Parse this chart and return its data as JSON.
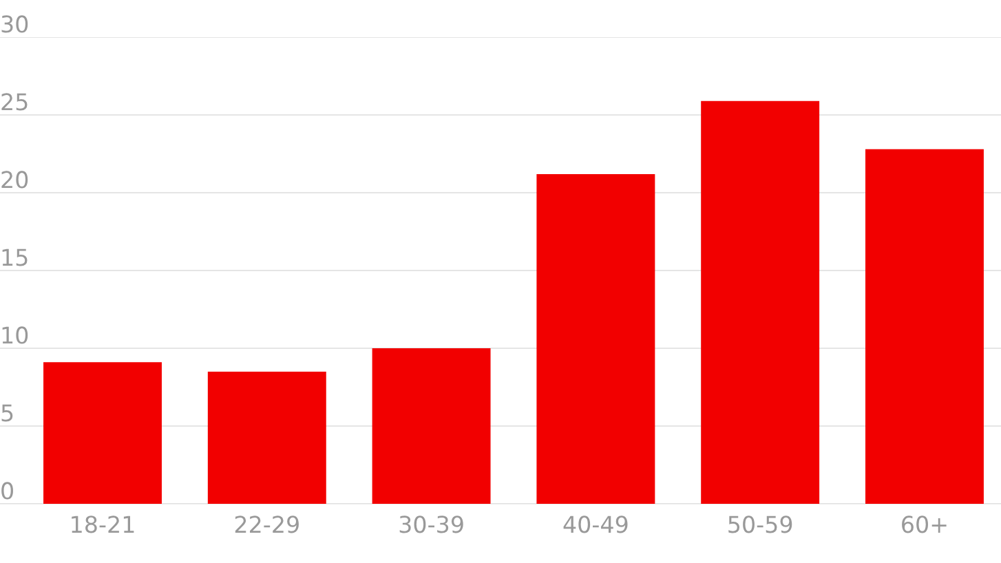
{
  "chart_data": {
    "type": "bar",
    "categories": [
      "18-21",
      "22-29",
      "30-39",
      "40-49",
      "50-59",
      "60+"
    ],
    "values": [
      9.1,
      8.5,
      10.0,
      21.2,
      25.9,
      22.8
    ],
    "color": "#f20000",
    "ylim": [
      0,
      30
    ],
    "yticks": [
      0,
      5,
      10,
      15,
      20,
      25,
      30
    ],
    "grid": "y"
  }
}
